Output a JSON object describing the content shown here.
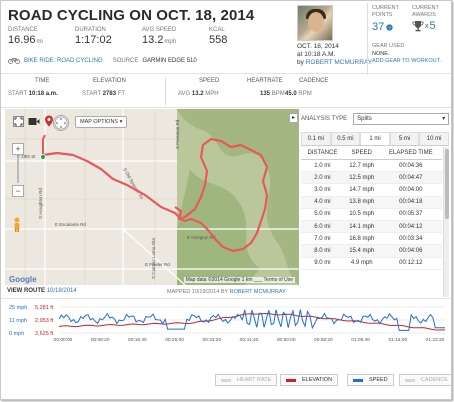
{
  "ride": {
    "title": "ROAD CYCLING ON OCT. 18, 2014",
    "stats": [
      {
        "label": "DISTANCE",
        "value": "16.96",
        "unit": "mi"
      },
      {
        "label": "DURATION",
        "value": "1:17:02",
        "unit": ""
      },
      {
        "label": "AVG SPEED",
        "value": "13.2",
        "unit": "mph"
      },
      {
        "label": "KCAL",
        "value": "558",
        "unit": ""
      }
    ],
    "bike_link": "BIKE RIDE: ROAD CYCLING",
    "source_label": "SOURCE",
    "source_value": "GARMIN EDGE 510"
  },
  "user": {
    "date": "OCT. 18, 2014",
    "time": "at 10:18 A.M.",
    "by": "by",
    "name": "ROBERT MCMURRAY"
  },
  "points": {
    "label_1": "CURRENT",
    "label_2": "POINTS",
    "value": "37"
  },
  "awards": {
    "label_1": "CURRENT",
    "label_2": "AWARDS",
    "x": "x",
    "value": "5"
  },
  "gear": {
    "label": "GEAR USED",
    "value": "NONE.",
    "link": "ADD GEAR TO WORKOUT."
  },
  "info": {
    "time_h": "TIME",
    "time_start": "START",
    "time_val": "10:18 a.m.",
    "elev_h": "ELEVATION",
    "elev_start": "START",
    "elev_val": "2783",
    "elev_unit": "ft",
    "speed_h": "SPEED",
    "speed_avg": "AVG",
    "speed_val": "13.2",
    "speed_unit": "mph",
    "hr_h": "HEARTRATE",
    "hr_val": "135",
    "hr_unit": "bpm",
    "cad_h": "CADENCE",
    "cad_val": "45.0",
    "cad_unit": "rpm"
  },
  "map": {
    "options_label": "MAP OPTIONS",
    "footer": "Map data ©2014 Google   1 km ___   Terms of Use",
    "google": "Google",
    "roads": [
      "E 29th St",
      "E Escalante Rd",
      "S Houghton Rd",
      "S Freeman Rd",
      "S Old Spanish Trl",
      "E Irvington Rd",
      "S Camino Loma Alta",
      "E Fowler Rd"
    ]
  },
  "view_route": {
    "label": "VIEW ROUTE",
    "date": "10/18/2014"
  },
  "mapped": {
    "label": "MAPPED",
    "date": "10/19/2014",
    "by": "BY",
    "name": "ROBERT MCMURRAY"
  },
  "analysis": {
    "label": "ANALYSIS TYPE",
    "selected": "Splits",
    "collapse": "▸"
  },
  "tabs": [
    "0.1 mi",
    "0.5 mi",
    "1 mi",
    "5 mi",
    "10 mi"
  ],
  "active_tab": 2,
  "splits": {
    "headers": [
      "DISTANCE",
      "SPEED",
      "ELAPSED TIME"
    ],
    "rows": [
      [
        "1.0 mi",
        "12.7 mph",
        "00:04:36"
      ],
      [
        "2.0 mi",
        "12.5 mph",
        "00:04:47"
      ],
      [
        "3.0 mi",
        "14.7 mph",
        "00:04:00"
      ],
      [
        "4.0 mi",
        "13.8 mph",
        "00:04:18"
      ],
      [
        "5.0 mi",
        "10.5 mph",
        "00:05:37"
      ],
      [
        "6.0 mi",
        "14.1 mph",
        "00:04:12"
      ],
      [
        "7.0 mi",
        "16.8 mph",
        "00:03:34"
      ],
      [
        "8.0 mi",
        "15.4 mph",
        "00:04:06"
      ],
      [
        "9.0 mi",
        "4.9 mph",
        "00:12:12"
      ]
    ]
  },
  "chart": {
    "y_left": [
      "25 mph",
      "11 mph",
      "0 mph"
    ],
    "y_right": [
      "5,281 ft",
      "2,953 ft",
      "2,625 ft"
    ],
    "x_ticks": [
      "00:00:00",
      "00:08:20",
      "00:16:40",
      "00:25:00",
      "00:33:20",
      "00:41:40",
      "00:50:00",
      "00:58:20",
      "01:06:40",
      "01:15:00",
      "01:23:20"
    ],
    "legend": [
      {
        "label": "HEART RATE",
        "color": "#c0504d",
        "muted": true
      },
      {
        "label": "ELEVATION",
        "color": "#cc2222",
        "muted": false
      },
      {
        "label": "SPEED",
        "color": "#1f6fd1",
        "muted": false
      },
      {
        "label": "CADENCE",
        "color": "#9bbb59",
        "muted": true
      }
    ],
    "colors": {
      "elevation": "#cc2222",
      "speed": "#1f6fd1",
      "accent": "#2a7ab8"
    }
  }
}
